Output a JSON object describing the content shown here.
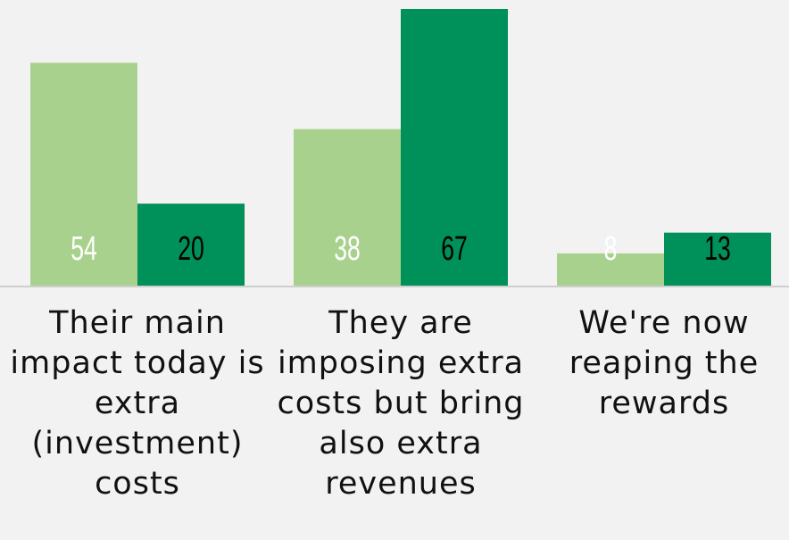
{
  "chart_data": {
    "type": "bar",
    "categories": [
      "Their main impact today is extra (investment) costs",
      "They are imposing extra costs but bring also extra revenues",
      "We're now reaping the rewards"
    ],
    "series": [
      {
        "color": "#a9d18e",
        "label_color": "#ffffff",
        "values": [
          54,
          38,
          8
        ]
      },
      {
        "color": "#00905a",
        "label_color": "#000000",
        "values": [
          20,
          67,
          13
        ]
      }
    ],
    "ylim": [
      0,
      67
    ]
  }
}
